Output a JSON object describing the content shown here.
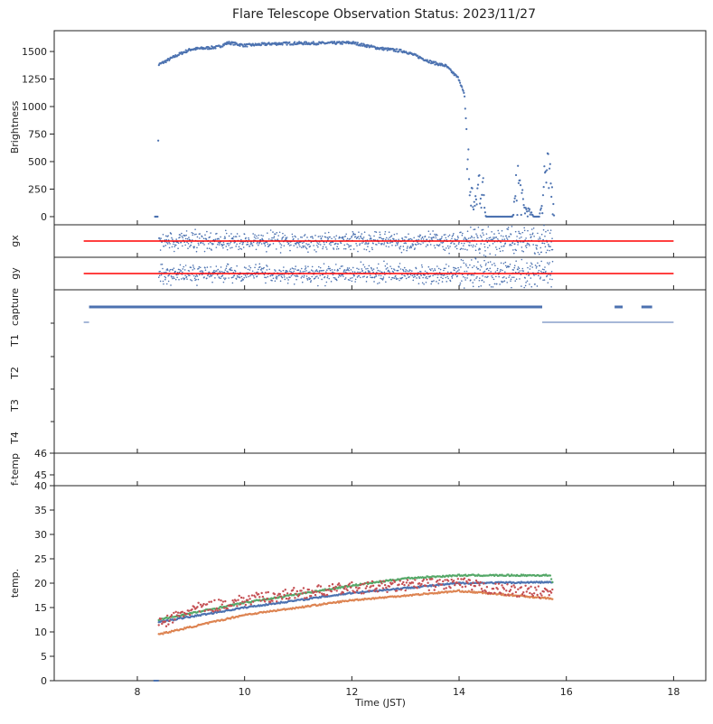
{
  "chart_data": {
    "type": "scatter",
    "title": "Flare Telescope Observation Status: 2023/11/27",
    "xlabel": "Time (JST)",
    "xlim": [
      6.45,
      18.6
    ],
    "xticks": [
      8,
      10,
      12,
      14,
      16,
      18
    ],
    "colors": {
      "blue": "#4c72b0",
      "red": "#ff0000",
      "green": "#55a868",
      "orange": "#dd8452",
      "tred": "#c44e52"
    },
    "panels": [
      {
        "id": "brightness",
        "ylabel": "Brightness",
        "ylim": [
          -74,
          1689
        ],
        "yticks": [
          0,
          250,
          500,
          750,
          1000,
          1250,
          1500
        ],
        "series": [
          {
            "name": "brightness",
            "points": [
              [
                8.33,
                0
              ],
              [
                8.38,
                0
              ],
              [
                8.4,
                1380
              ],
              [
                8.6,
                1430
              ],
              [
                8.8,
                1480
              ],
              [
                9,
                1520
              ],
              [
                9.5,
                1540
              ],
              [
                9.7,
                1580
              ],
              [
                10,
                1555
              ],
              [
                10.5,
                1570
              ],
              [
                11,
                1575
              ],
              [
                11.5,
                1575
              ],
              [
                12,
                1580
              ],
              [
                12.5,
                1530
              ],
              [
                13,
                1500
              ],
              [
                13.25,
                1450
              ],
              [
                13.5,
                1400
              ],
              [
                13.75,
                1370
              ],
              [
                14,
                1250
              ],
              [
                14.1,
                1100
              ],
              [
                14.15,
                700
              ],
              [
                14.2,
                300
              ],
              [
                14.3,
                100
              ],
              [
                14.4,
                500
              ],
              [
                14.5,
                0
              ],
              [
                15,
                0
              ],
              [
                15.1,
                400
              ],
              [
                15.2,
                100
              ],
              [
                15.4,
                0
              ],
              [
                15.5,
                0
              ],
              [
                15.6,
                500
              ],
              [
                15.7,
                300
              ],
              [
                15.75,
                250
              ]
            ]
          }
        ]
      },
      {
        "id": "gx",
        "ylabel": "gx",
        "ref": [
          7.0,
          18.0
        ]
      },
      {
        "id": "gy",
        "ylabel": "gy",
        "ref": [
          7.0,
          18.0
        ]
      },
      {
        "id": "capture",
        "ylabels": [
          "capture",
          "T1",
          "T2",
          "T3",
          "T4"
        ],
        "capture_segments": [
          [
            7.1,
            15.55
          ],
          [
            16.9,
            17.05
          ],
          [
            17.4,
            17.6
          ]
        ],
        "t1_segments": [
          [
            7.0,
            7.1
          ],
          [
            15.55,
            18.0
          ]
        ]
      },
      {
        "id": "ftemp",
        "ylabel": "f-temp",
        "yticks": [
          46,
          45,
          40
        ]
      },
      {
        "id": "temp",
        "ylabel": "temp.",
        "ylim": [
          0,
          40
        ],
        "yticks": [
          0,
          5,
          10,
          15,
          20,
          25,
          30,
          35
        ],
        "series": [
          {
            "name": "blue",
            "color": "#4c72b0",
            "points": [
              [
                8.4,
                12
              ],
              [
                10,
                15
              ],
              [
                12,
                18
              ],
              [
                14,
                20
              ],
              [
                15.7,
                20.2
              ],
              [
                15.75,
                20
              ]
            ]
          },
          {
            "name": "green",
            "color": "#55a868",
            "points": [
              [
                8.4,
                12.5
              ],
              [
                10,
                16
              ],
              [
                12,
                19.5
              ],
              [
                13,
                21
              ],
              [
                14,
                21.6
              ],
              [
                15.7,
                21.6
              ],
              [
                15.75,
                20
              ]
            ]
          },
          {
            "name": "orange",
            "color": "#dd8452",
            "points": [
              [
                8.4,
                9.5
              ],
              [
                10,
                13.5
              ],
              [
                12,
                16.5
              ],
              [
                14,
                18.4
              ],
              [
                15,
                17.5
              ],
              [
                15.75,
                16.8
              ]
            ]
          },
          {
            "name": "red",
            "color": "#c44e52",
            "points": [
              [
                8.4,
                11.5
              ],
              [
                9,
                14.5
              ],
              [
                10,
                16.5
              ],
              [
                11,
                18
              ],
              [
                12,
                19
              ],
              [
                13,
                19.5
              ],
              [
                14,
                20
              ],
              [
                14.5,
                19
              ],
              [
                15,
                18.5
              ],
              [
                15.75,
                18
              ]
            ]
          }
        ]
      }
    ]
  }
}
